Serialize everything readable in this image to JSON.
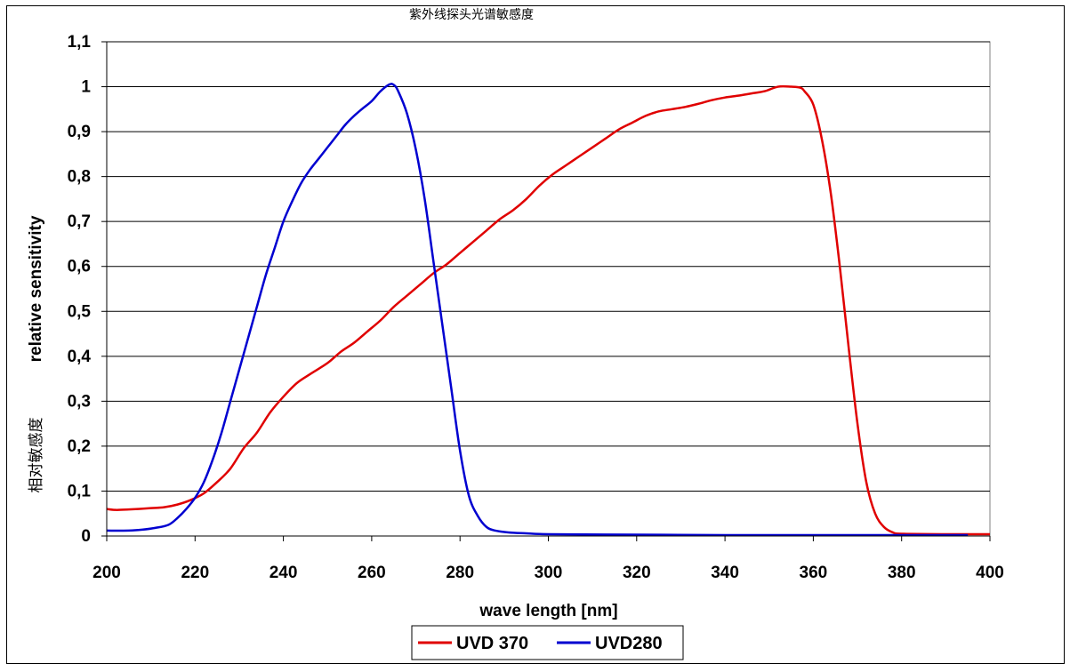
{
  "chart_data": {
    "type": "line",
    "title": "紫外线探头光谱敏感度",
    "xlabel": "wave length [nm]",
    "ylabel": "relative sensitivity",
    "ylabel_cn": "相对敏感度",
    "xlim": [
      200,
      400
    ],
    "ylim": [
      0,
      1.1
    ],
    "x_ticks": [
      "200",
      "220",
      "240",
      "260",
      "280",
      "300",
      "320",
      "340",
      "360",
      "380",
      "400"
    ],
    "y_ticks": [
      "0",
      "0,1",
      "0,2",
      "0,3",
      "0,4",
      "0,5",
      "0,6",
      "0,7",
      "0,8",
      "0,9",
      "1",
      "1,1"
    ],
    "grid": "horizontal",
    "legend_position": "bottom",
    "series": [
      {
        "name": "UVD 370",
        "color": "#e00000",
        "points": [
          [
            200,
            0.06
          ],
          [
            202,
            0.058
          ],
          [
            205,
            0.059
          ],
          [
            210,
            0.062
          ],
          [
            213,
            0.064
          ],
          [
            216,
            0.07
          ],
          [
            219,
            0.08
          ],
          [
            222,
            0.095
          ],
          [
            225,
            0.12
          ],
          [
            228,
            0.15
          ],
          [
            231,
            0.195
          ],
          [
            234,
            0.23
          ],
          [
            237,
            0.275
          ],
          [
            240,
            0.31
          ],
          [
            243,
            0.34
          ],
          [
            246,
            0.36
          ],
          [
            250,
            0.385
          ],
          [
            253,
            0.41
          ],
          [
            256,
            0.43
          ],
          [
            259,
            0.455
          ],
          [
            262,
            0.48
          ],
          [
            265,
            0.51
          ],
          [
            268,
            0.535
          ],
          [
            271,
            0.56
          ],
          [
            274,
            0.585
          ],
          [
            277,
            0.605
          ],
          [
            280,
            0.63
          ],
          [
            283,
            0.655
          ],
          [
            286,
            0.68
          ],
          [
            289,
            0.705
          ],
          [
            292,
            0.725
          ],
          [
            295,
            0.75
          ],
          [
            298,
            0.78
          ],
          [
            301,
            0.805
          ],
          [
            304,
            0.825
          ],
          [
            307,
            0.845
          ],
          [
            310,
            0.865
          ],
          [
            313,
            0.885
          ],
          [
            316,
            0.905
          ],
          [
            319,
            0.92
          ],
          [
            322,
            0.935
          ],
          [
            325,
            0.945
          ],
          [
            328,
            0.95
          ],
          [
            331,
            0.955
          ],
          [
            334,
            0.962
          ],
          [
            337,
            0.97
          ],
          [
            340,
            0.976
          ],
          [
            343,
            0.98
          ],
          [
            346,
            0.985
          ],
          [
            349,
            0.99
          ],
          [
            352,
            1.0
          ],
          [
            355,
            1.0
          ],
          [
            357,
            0.998
          ],
          [
            358,
            0.99
          ],
          [
            360,
            0.96
          ],
          [
            362,
            0.88
          ],
          [
            364,
            0.76
          ],
          [
            366,
            0.6
          ],
          [
            368,
            0.42
          ],
          [
            370,
            0.25
          ],
          [
            372,
            0.12
          ],
          [
            374,
            0.05
          ],
          [
            376,
            0.02
          ],
          [
            378,
            0.008
          ],
          [
            380,
            0.005
          ],
          [
            390,
            0.004
          ],
          [
            400,
            0.004
          ]
        ]
      },
      {
        "name": "UVD280",
        "color": "#0000d0",
        "points": [
          [
            200,
            0.012
          ],
          [
            205,
            0.012
          ],
          [
            208,
            0.014
          ],
          [
            211,
            0.018
          ],
          [
            214,
            0.025
          ],
          [
            216,
            0.04
          ],
          [
            218,
            0.06
          ],
          [
            220,
            0.085
          ],
          [
            222,
            0.12
          ],
          [
            224,
            0.17
          ],
          [
            226,
            0.23
          ],
          [
            228,
            0.3
          ],
          [
            230,
            0.37
          ],
          [
            232,
            0.44
          ],
          [
            234,
            0.51
          ],
          [
            236,
            0.58
          ],
          [
            238,
            0.64
          ],
          [
            240,
            0.7
          ],
          [
            242,
            0.745
          ],
          [
            244,
            0.785
          ],
          [
            246,
            0.815
          ],
          [
            248,
            0.84
          ],
          [
            250,
            0.865
          ],
          [
            252,
            0.89
          ],
          [
            254,
            0.915
          ],
          [
            256,
            0.935
          ],
          [
            258,
            0.952
          ],
          [
            260,
            0.968
          ],
          [
            262,
            0.99
          ],
          [
            264,
            1.005
          ],
          [
            265,
            1.004
          ],
          [
            266,
            0.99
          ],
          [
            268,
            0.94
          ],
          [
            270,
            0.86
          ],
          [
            272,
            0.75
          ],
          [
            274,
            0.61
          ],
          [
            276,
            0.47
          ],
          [
            278,
            0.33
          ],
          [
            280,
            0.19
          ],
          [
            282,
            0.09
          ],
          [
            284,
            0.045
          ],
          [
            286,
            0.02
          ],
          [
            288,
            0.012
          ],
          [
            291,
            0.008
          ],
          [
            295,
            0.006
          ],
          [
            300,
            0.004
          ],
          [
            320,
            0.003
          ],
          [
            340,
            0.002
          ],
          [
            360,
            0.002
          ],
          [
            380,
            0.002
          ],
          [
            395,
            0.002
          ]
        ]
      }
    ]
  }
}
